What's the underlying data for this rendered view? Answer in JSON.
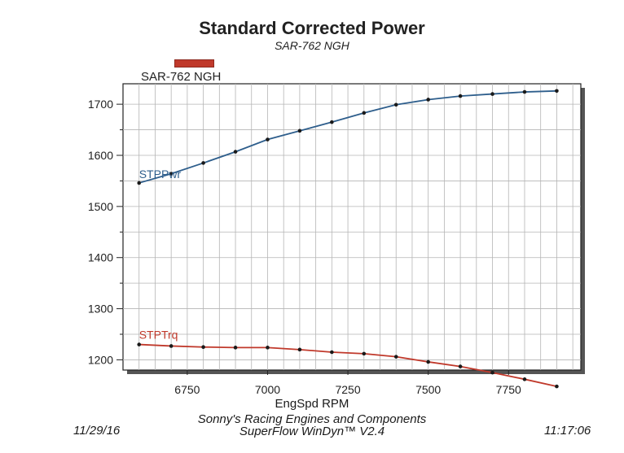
{
  "chart_data": {
    "type": "line",
    "title": "Standard Corrected Power",
    "subtitle": "SAR-762 NGH",
    "legend": [
      "SAR-762 NGH"
    ],
    "xlabel": "EngSpd  RPM",
    "ylabel": "",
    "xlim": [
      6550,
      7975
    ],
    "ylim": [
      1180,
      1740
    ],
    "x_ticks": [
      6750,
      7000,
      7250,
      7500,
      7750
    ],
    "y_ticks": [
      1200,
      1300,
      1400,
      1500,
      1600,
      1700
    ],
    "grid": true,
    "colors": {
      "power": "#2e5e8c",
      "torque": "#c0392b"
    },
    "series": [
      {
        "name": "STPPwr",
        "x": [
          6600,
          6700,
          6800,
          6900,
          7000,
          7100,
          7200,
          7300,
          7400,
          7500,
          7600,
          7700,
          7800,
          7900
        ],
        "values": [
          1546,
          1564,
          1585,
          1607,
          1631,
          1648,
          1665,
          1683,
          1699,
          1709,
          1716,
          1720,
          1724,
          1726
        ]
      },
      {
        "name": "STPTrq",
        "x": [
          6600,
          6700,
          6800,
          6900,
          7000,
          7100,
          7200,
          7300,
          7400,
          7500,
          7600,
          7700,
          7800,
          7900
        ],
        "values": [
          1230,
          1227,
          1225,
          1224,
          1224,
          1220,
          1215,
          1212,
          1206,
          1196,
          1187,
          1175,
          1162,
          1148
        ]
      }
    ]
  },
  "footer": {
    "date": "11/29/16",
    "company": "Sonny's Racing Engines and Components",
    "software": "SuperFlow WinDyn™ V2.4",
    "time": "11:17:06"
  }
}
